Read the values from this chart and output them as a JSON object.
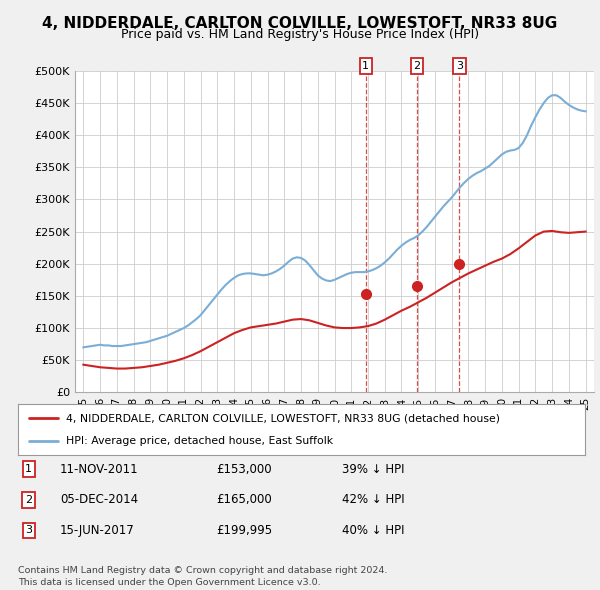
{
  "title": "4, NIDDERDALE, CARLTON COLVILLE, LOWESTOFT, NR33 8UG",
  "subtitle": "Price paid vs. HM Land Registry's House Price Index (HPI)",
  "title_fontsize": 11,
  "subtitle_fontsize": 9,
  "background_color": "#f0f0f0",
  "plot_bg_color": "#ffffff",
  "grid_color": "#cccccc",
  "hpi_color": "#7aaed6",
  "price_color": "#cc2222",
  "ylim": [
    0,
    500000
  ],
  "yticks": [
    0,
    50000,
    100000,
    150000,
    200000,
    250000,
    300000,
    350000,
    400000,
    450000,
    500000
  ],
  "ytick_labels": [
    "£0",
    "£50K",
    "£100K",
    "£150K",
    "£200K",
    "£250K",
    "£300K",
    "£350K",
    "£400K",
    "£450K",
    "£500K"
  ],
  "sale_dates": [
    2011.87,
    2014.92,
    2017.46
  ],
  "sale_prices": [
    153000,
    165000,
    199995
  ],
  "sale_labels": [
    "1",
    "2",
    "3"
  ],
  "legend_entries": [
    "4, NIDDERDALE, CARLTON COLVILLE, LOWESTOFT, NR33 8UG (detached house)",
    "HPI: Average price, detached house, East Suffolk"
  ],
  "table_rows": [
    [
      "1",
      "11-NOV-2011",
      "£153,000",
      "39% ↓ HPI"
    ],
    [
      "2",
      "05-DEC-2014",
      "£165,000",
      "42% ↓ HPI"
    ],
    [
      "3",
      "15-JUN-2017",
      "£199,995",
      "40% ↓ HPI"
    ]
  ],
  "footer": "Contains HM Land Registry data © Crown copyright and database right 2024.\nThis data is licensed under the Open Government Licence v3.0.",
  "hpi_x": [
    1995.0,
    1995.25,
    1995.5,
    1995.75,
    1996.0,
    1996.25,
    1996.5,
    1996.75,
    1997.0,
    1997.25,
    1997.5,
    1997.75,
    1998.0,
    1998.25,
    1998.5,
    1998.75,
    1999.0,
    1999.25,
    1999.5,
    1999.75,
    2000.0,
    2000.25,
    2000.5,
    2000.75,
    2001.0,
    2001.25,
    2001.5,
    2001.75,
    2002.0,
    2002.25,
    2002.5,
    2002.75,
    2003.0,
    2003.25,
    2003.5,
    2003.75,
    2004.0,
    2004.25,
    2004.5,
    2004.75,
    2005.0,
    2005.25,
    2005.5,
    2005.75,
    2006.0,
    2006.25,
    2006.5,
    2006.75,
    2007.0,
    2007.25,
    2007.5,
    2007.75,
    2008.0,
    2008.25,
    2008.5,
    2008.75,
    2009.0,
    2009.25,
    2009.5,
    2009.75,
    2010.0,
    2010.25,
    2010.5,
    2010.75,
    2011.0,
    2011.25,
    2011.5,
    2011.75,
    2012.0,
    2012.25,
    2012.5,
    2012.75,
    2013.0,
    2013.25,
    2013.5,
    2013.75,
    2014.0,
    2014.25,
    2014.5,
    2014.75,
    2015.0,
    2015.25,
    2015.5,
    2015.75,
    2016.0,
    2016.25,
    2016.5,
    2016.75,
    2017.0,
    2017.25,
    2017.5,
    2017.75,
    2018.0,
    2018.25,
    2018.5,
    2018.75,
    2019.0,
    2019.25,
    2019.5,
    2019.75,
    2020.0,
    2020.25,
    2020.5,
    2020.75,
    2021.0,
    2021.25,
    2021.5,
    2021.75,
    2022.0,
    2022.25,
    2022.5,
    2022.75,
    2023.0,
    2023.25,
    2023.5,
    2023.75,
    2024.0,
    2024.25,
    2024.5,
    2024.75,
    2025.0
  ],
  "hpi_y": [
    70000,
    71000,
    72000,
    73000,
    74000,
    73000,
    73000,
    72000,
    72000,
    72000,
    73000,
    74000,
    75000,
    76000,
    77000,
    78000,
    80000,
    82000,
    84000,
    86000,
    88000,
    91000,
    94000,
    97000,
    100000,
    104000,
    109000,
    114000,
    120000,
    128000,
    136000,
    144000,
    152000,
    160000,
    167000,
    173000,
    178000,
    182000,
    184000,
    185000,
    185000,
    184000,
    183000,
    182000,
    183000,
    185000,
    188000,
    192000,
    197000,
    203000,
    208000,
    210000,
    209000,
    205000,
    198000,
    190000,
    182000,
    177000,
    174000,
    173000,
    175000,
    178000,
    181000,
    184000,
    186000,
    187000,
    187000,
    187000,
    188000,
    190000,
    193000,
    197000,
    202000,
    208000,
    215000,
    222000,
    228000,
    233000,
    237000,
    240000,
    244000,
    250000,
    257000,
    265000,
    273000,
    281000,
    289000,
    296000,
    303000,
    311000,
    319000,
    326000,
    332000,
    337000,
    341000,
    344000,
    348000,
    352000,
    358000,
    364000,
    370000,
    374000,
    376000,
    377000,
    380000,
    388000,
    400000,
    415000,
    428000,
    440000,
    450000,
    458000,
    462000,
    462000,
    458000,
    452000,
    447000,
    443000,
    440000,
    438000,
    437000
  ],
  "price_x": [
    1995.0,
    1995.5,
    1996.0,
    1996.5,
    1997.0,
    1997.5,
    1998.0,
    1998.5,
    1999.0,
    1999.5,
    2000.0,
    2000.5,
    2001.0,
    2001.5,
    2002.0,
    2002.5,
    2003.0,
    2003.5,
    2004.0,
    2004.5,
    2005.0,
    2005.5,
    2006.0,
    2006.5,
    2007.0,
    2007.5,
    2008.0,
    2008.5,
    2009.0,
    2009.5,
    2010.0,
    2010.5,
    2011.0,
    2011.5,
    2012.0,
    2012.5,
    2013.0,
    2013.5,
    2014.0,
    2014.5,
    2015.0,
    2015.5,
    2016.0,
    2016.5,
    2017.0,
    2017.5,
    2018.0,
    2018.5,
    2019.0,
    2019.5,
    2020.0,
    2020.5,
    2021.0,
    2021.5,
    2022.0,
    2022.5,
    2023.0,
    2023.5,
    2024.0,
    2024.5,
    2025.0
  ],
  "price_y": [
    43000,
    41000,
    39000,
    38000,
    37000,
    37000,
    38000,
    39000,
    41000,
    43000,
    46000,
    49000,
    53000,
    58000,
    64000,
    71000,
    78000,
    85000,
    92000,
    97000,
    101000,
    103000,
    105000,
    107000,
    110000,
    113000,
    114000,
    112000,
    108000,
    104000,
    101000,
    100000,
    100000,
    101000,
    103000,
    107000,
    113000,
    120000,
    127000,
    133000,
    140000,
    147000,
    155000,
    163000,
    171000,
    178000,
    185000,
    191000,
    197000,
    203000,
    208000,
    215000,
    224000,
    234000,
    244000,
    250000,
    251000,
    249000,
    248000,
    249000,
    250000
  ]
}
